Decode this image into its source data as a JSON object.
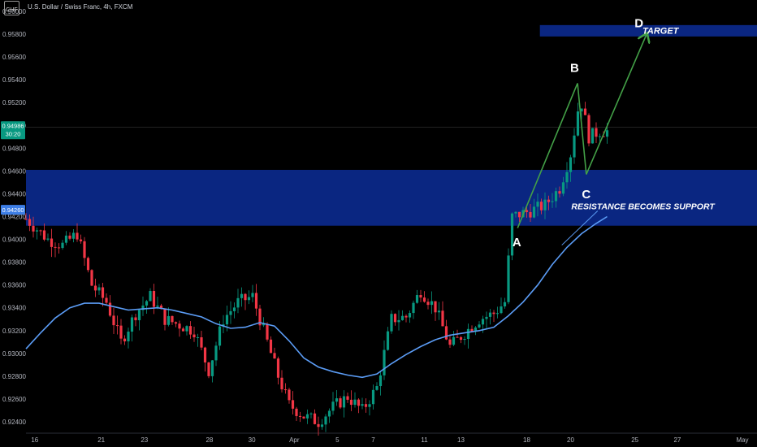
{
  "header": {
    "currency": "CHF",
    "title": "U.S. Dollar / Swiss Franc, 4h, FXCM"
  },
  "price_badges": {
    "current_price": "0.94986",
    "countdown": "30:20",
    "ma_value": "0.94260",
    "colors": {
      "current": "#089981",
      "ma": "#3d7ee6"
    }
  },
  "colors": {
    "up": "#089981",
    "down": "#f23645",
    "ma_line": "#5b9cf5",
    "zone": "#0b2a8f",
    "arrows": "#43a047"
  },
  "annotations": {
    "points": {
      "a": "A",
      "b": "B",
      "c": "C",
      "d": "D"
    },
    "target_label": "TARGET",
    "support_label": "RESISTANCE BECOMES SUPPORT"
  },
  "chart_data": {
    "type": "candlestick",
    "interval": "4h",
    "y_ticks": [
      "0.96000",
      "0.95800",
      "0.95600",
      "0.95400",
      "0.95200",
      "0.95000",
      "0.94800",
      "0.94600",
      "0.94400",
      "0.94200",
      "0.94000",
      "0.93800",
      "0.93600",
      "0.93400",
      "0.93200",
      "0.93000",
      "0.92800",
      "0.92600",
      "0.92400"
    ],
    "x_ticks": [
      "16",
      "21",
      "23",
      "28",
      "30",
      "Apr",
      "5",
      "7",
      "11",
      "13",
      "18",
      "20",
      "25",
      "27",
      "May"
    ],
    "ylim": [
      0.923,
      0.961
    ],
    "zones": [
      {
        "name": "support_resistance",
        "from": 0.9412,
        "to": 0.9461
      },
      {
        "name": "target",
        "from": 0.9578,
        "to": 0.9588
      }
    ],
    "points": {
      "A": {
        "x": 0.6725,
        "y": 0.941
      },
      "B": {
        "x": 0.7545,
        "y": 0.9537
      },
      "C": {
        "x": 0.7665,
        "y": 0.9457
      },
      "D": {
        "x": 0.849,
        "y": 0.958
      }
    },
    "ma": [
      [
        0.0,
        0.9304
      ],
      [
        0.02,
        0.9318
      ],
      [
        0.04,
        0.9331
      ],
      [
        0.06,
        0.934
      ],
      [
        0.08,
        0.9344
      ],
      [
        0.1,
        0.9344
      ],
      [
        0.12,
        0.9341
      ],
      [
        0.14,
        0.9338
      ],
      [
        0.16,
        0.9339
      ],
      [
        0.18,
        0.934
      ],
      [
        0.2,
        0.9338
      ],
      [
        0.22,
        0.9335
      ],
      [
        0.24,
        0.9332
      ],
      [
        0.26,
        0.9326
      ],
      [
        0.28,
        0.9322
      ],
      [
        0.3,
        0.9323
      ],
      [
        0.32,
        0.9327
      ],
      [
        0.34,
        0.9324
      ],
      [
        0.36,
        0.9311
      ],
      [
        0.38,
        0.9296
      ],
      [
        0.4,
        0.9288
      ],
      [
        0.42,
        0.9284
      ],
      [
        0.44,
        0.9281
      ],
      [
        0.46,
        0.9279
      ],
      [
        0.48,
        0.9282
      ],
      [
        0.5,
        0.9291
      ],
      [
        0.52,
        0.9299
      ],
      [
        0.54,
        0.9306
      ],
      [
        0.56,
        0.9312
      ],
      [
        0.58,
        0.9316
      ],
      [
        0.6,
        0.9318
      ],
      [
        0.62,
        0.932
      ],
      [
        0.64,
        0.9323
      ],
      [
        0.66,
        0.9333
      ],
      [
        0.68,
        0.9345
      ],
      [
        0.7,
        0.936
      ],
      [
        0.72,
        0.9378
      ],
      [
        0.74,
        0.9393
      ],
      [
        0.76,
        0.9405
      ],
      [
        0.78,
        0.9414
      ],
      [
        0.795,
        0.942
      ]
    ],
    "anchors": [
      [
        0.0,
        0.9418
      ],
      [
        0.03,
        0.94
      ],
      [
        0.05,
        0.9395
      ],
      [
        0.07,
        0.9405
      ],
      [
        0.09,
        0.936
      ],
      [
        0.11,
        0.9345
      ],
      [
        0.13,
        0.931
      ],
      [
        0.15,
        0.9335
      ],
      [
        0.17,
        0.935
      ],
      [
        0.19,
        0.933
      ],
      [
        0.21,
        0.9325
      ],
      [
        0.23,
        0.932
      ],
      [
        0.25,
        0.9285
      ],
      [
        0.27,
        0.933
      ],
      [
        0.29,
        0.9345
      ],
      [
        0.31,
        0.935
      ],
      [
        0.325,
        0.932
      ],
      [
        0.345,
        0.928
      ],
      [
        0.36,
        0.9255
      ],
      [
        0.38,
        0.9245
      ],
      [
        0.4,
        0.924
      ],
      [
        0.42,
        0.9253
      ],
      [
        0.44,
        0.9262
      ],
      [
        0.46,
        0.925
      ],
      [
        0.48,
        0.927
      ],
      [
        0.5,
        0.933
      ],
      [
        0.52,
        0.9332
      ],
      [
        0.54,
        0.9355
      ],
      [
        0.56,
        0.934
      ],
      [
        0.58,
        0.9306
      ],
      [
        0.6,
        0.9318
      ],
      [
        0.62,
        0.933
      ],
      [
        0.64,
        0.9335
      ],
      [
        0.655,
        0.9345
      ],
      [
        0.665,
        0.942
      ],
      [
        0.69,
        0.9425
      ],
      [
        0.71,
        0.943
      ],
      [
        0.73,
        0.9445
      ],
      [
        0.745,
        0.9475
      ],
      [
        0.758,
        0.9525
      ],
      [
        0.77,
        0.949
      ],
      [
        0.785,
        0.9495
      ],
      [
        0.795,
        0.9495
      ]
    ]
  }
}
